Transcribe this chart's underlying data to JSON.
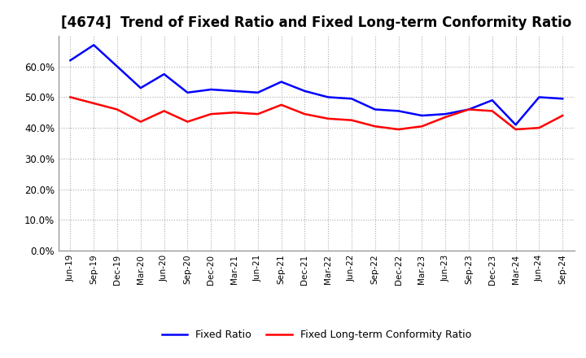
{
  "title": "[4674]  Trend of Fixed Ratio and Fixed Long-term Conformity Ratio",
  "x_labels": [
    "Jun-19",
    "Sep-19",
    "Dec-19",
    "Mar-20",
    "Jun-20",
    "Sep-20",
    "Dec-20",
    "Mar-21",
    "Jun-21",
    "Sep-21",
    "Dec-21",
    "Mar-22",
    "Jun-22",
    "Sep-22",
    "Dec-22",
    "Mar-23",
    "Jun-23",
    "Sep-23",
    "Dec-23",
    "Mar-24",
    "Jun-24",
    "Sep-24"
  ],
  "fixed_ratio": [
    62.0,
    67.0,
    60.0,
    53.0,
    57.5,
    51.5,
    52.5,
    52.0,
    51.5,
    55.0,
    52.0,
    50.0,
    49.5,
    46.0,
    45.5,
    44.0,
    44.5,
    46.0,
    49.0,
    41.0,
    50.0,
    49.5
  ],
  "fixed_lt_ratio": [
    50.0,
    48.0,
    46.0,
    42.0,
    45.5,
    42.0,
    44.5,
    45.0,
    44.5,
    47.5,
    44.5,
    43.0,
    42.5,
    40.5,
    39.5,
    40.5,
    43.5,
    46.0,
    45.5,
    39.5,
    40.0,
    44.0
  ],
  "fixed_ratio_color": "#0000FF",
  "fixed_lt_ratio_color": "#FF0000",
  "ylim": [
    0,
    70
  ],
  "yticks": [
    0,
    10,
    20,
    30,
    40,
    50,
    60
  ],
  "background_color": "#FFFFFF",
  "grid_color": "#AAAAAA",
  "title_fontsize": 12,
  "legend_labels": [
    "Fixed Ratio",
    "Fixed Long-term Conformity Ratio"
  ]
}
